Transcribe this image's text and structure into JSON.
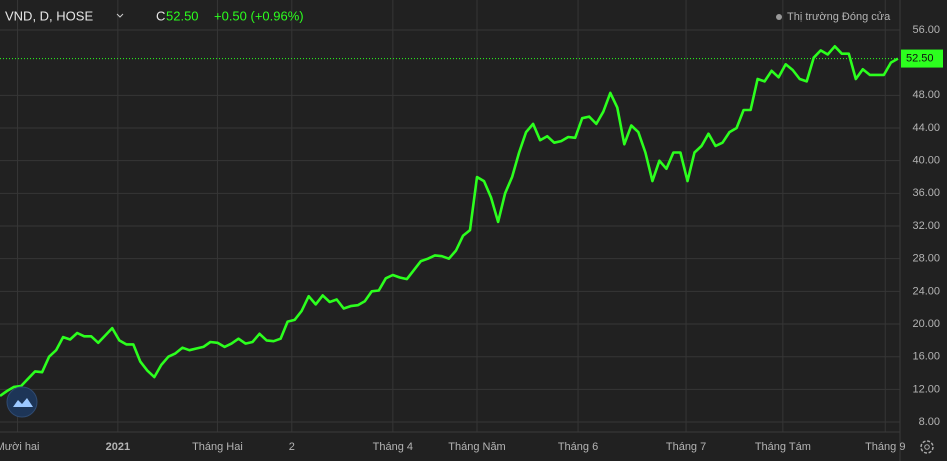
{
  "header": {
    "symbol": "VND, D, HOSE",
    "close_prefix": "C",
    "close": "52.50",
    "change": "+0.50 (+0.96%)",
    "status": "Thị trường Đóng cửa"
  },
  "chart_data": {
    "type": "line",
    "color": "#2cff1e",
    "values": [
      11.2,
      11.8,
      12.3,
      12.4,
      13.3,
      14.2,
      14.1,
      16.0,
      16.8,
      18.4,
      18.1,
      18.9,
      18.5,
      18.5,
      17.7,
      18.6,
      19.5,
      18.0,
      17.5,
      17.5,
      15.4,
      14.3,
      13.5,
      15.0,
      16.0,
      16.4,
      17.1,
      16.8,
      17.0,
      17.2,
      17.8,
      17.7,
      17.2,
      17.6,
      18.2,
      17.6,
      17.8,
      18.8,
      18.0,
      17.9,
      18.2,
      20.3,
      20.5,
      21.6,
      23.4,
      22.4,
      23.5,
      22.7,
      23.0,
      21.9,
      22.2,
      22.3,
      22.8,
      24.0,
      24.1,
      25.6,
      26.0,
      25.7,
      25.5,
      26.6,
      27.7,
      28.0,
      28.4,
      28.3,
      28.0,
      29.0,
      30.8,
      31.5,
      38.0,
      37.5,
      35.5,
      32.5,
      36.0,
      38.0,
      41.0,
      43.5,
      44.5,
      42.5,
      43.0,
      42.2,
      42.4,
      42.9,
      42.8,
      45.2,
      45.4,
      44.5,
      46.0,
      48.3,
      46.5,
      42.0,
      44.3,
      43.5,
      41.0,
      37.5,
      40.0,
      39.0,
      41.0,
      41.0,
      37.5,
      41.0,
      41.8,
      43.3,
      41.8,
      42.2,
      43.5,
      44.0,
      46.2,
      46.2,
      50.0,
      49.7,
      51.0,
      50.2,
      51.8,
      51.1,
      50.0,
      49.7,
      52.6,
      53.5,
      53.0,
      54.0,
      53.1,
      53.1,
      50.0,
      51.2,
      50.5,
      50.5,
      50.5,
      52.0,
      52.5
    ],
    "xlim": [
      0,
      128.3
    ],
    "xticks": [
      {
        "value": 2.5,
        "label": "Mười hai"
      },
      {
        "value": 16.8,
        "label": "2021"
      },
      {
        "value": 31,
        "label": "Tháng Hai"
      },
      {
        "value": 41.6,
        "label": "2"
      },
      {
        "value": 56,
        "label": "Tháng 4"
      },
      {
        "value": 68,
        "label": "Tháng Năm"
      },
      {
        "value": 82.4,
        "label": "Tháng 6"
      },
      {
        "value": 97.8,
        "label": "Tháng 7"
      },
      {
        "value": 111.6,
        "label": "Tháng Tám"
      },
      {
        "value": 126.2,
        "label": "Tháng 9"
      }
    ],
    "ylim": [
      6.78,
      59.67
    ],
    "yticks": [
      {
        "value": 8,
        "label": "8.00"
      },
      {
        "value": 12,
        "label": "12.00"
      },
      {
        "value": 16,
        "label": "16.00"
      },
      {
        "value": 20,
        "label": "20.00"
      },
      {
        "value": 24,
        "label": "24.00"
      },
      {
        "value": 28,
        "label": "28.00"
      },
      {
        "value": 32,
        "label": "32.00"
      },
      {
        "value": 36,
        "label": "36.00"
      },
      {
        "value": 40,
        "label": "40.00"
      },
      {
        "value": 44,
        "label": "44.00"
      },
      {
        "value": 48,
        "label": "48.00"
      },
      {
        "value": 56,
        "label": "56.00"
      }
    ],
    "last_price": {
      "value": 52.5,
      "label": "52.50"
    },
    "grid": true
  }
}
